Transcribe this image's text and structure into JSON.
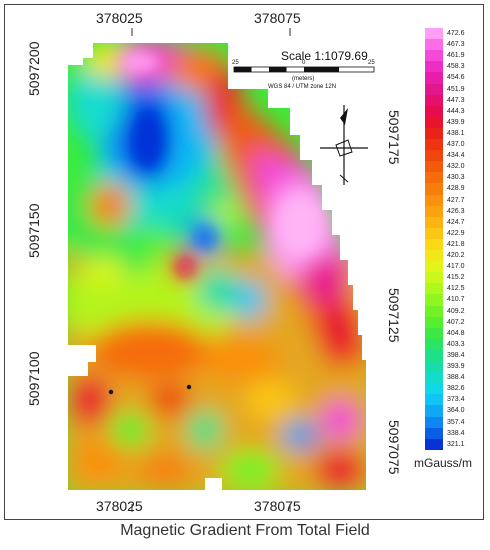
{
  "map": {
    "x_ticks_top": [
      "378025",
      "378075"
    ],
    "x_ticks_bottom": [
      "378025",
      "378075"
    ],
    "y_ticks_left": [
      "5097200",
      "5097150",
      "5097100"
    ],
    "y_ticks_right": [
      "5097175",
      "5097125",
      "5097075"
    ],
    "scale": {
      "title": "Scale 1:1079.69",
      "ticks": [
        "25",
        "0",
        "25"
      ],
      "unit": "(meters)",
      "projection": "WGS 84 / UTM zone 12N"
    },
    "north_arrow_icon": "north-arrow-icon",
    "legend": {
      "unit": "mGauss/m",
      "values": [
        "472.6",
        "467.3",
        "461.9",
        "458.3",
        "454.6",
        "451.9",
        "447.3",
        "444.3",
        "439.9",
        "438.1",
        "437.0",
        "434.4",
        "432.0",
        "430.3",
        "428.9",
        "427.7",
        "426.3",
        "424.7",
        "422.9",
        "421.8",
        "420.2",
        "417.0",
        "415.2",
        "412.5",
        "410.7",
        "409.2",
        "407.2",
        "404.8",
        "403.3",
        "398.4",
        "393.9",
        "388.4",
        "382.6",
        "373.4",
        "364.0",
        "357.4",
        "338.4",
        "321.1"
      ],
      "colors": [
        "#ff9ef4",
        "#fb6ee8",
        "#f54ad8",
        "#ef2cc6",
        "#e81eaa",
        "#e4168c",
        "#e4106c",
        "#e60c4e",
        "#e8142e",
        "#ea2218",
        "#ee3410",
        "#f0460e",
        "#f45a0c",
        "#f66c0c",
        "#f87e0c",
        "#fa900e",
        "#fca210",
        "#fcb412",
        "#fcc614",
        "#fad816",
        "#f2e818",
        "#e2f41a",
        "#caf81c",
        "#aef81e",
        "#90f620",
        "#72f226",
        "#56ee30",
        "#3ee844",
        "#2ae464",
        "#1ee088",
        "#18dcaa",
        "#14dccc",
        "#10d8e8",
        "#10c4f6",
        "#10a8f6",
        "#0e86f0",
        "#0a5ee6",
        "#0632d8"
      ]
    },
    "markers": [
      "marker-a",
      "marker-b"
    ],
    "caption": "Magnetic Gradient From Total Field"
  }
}
